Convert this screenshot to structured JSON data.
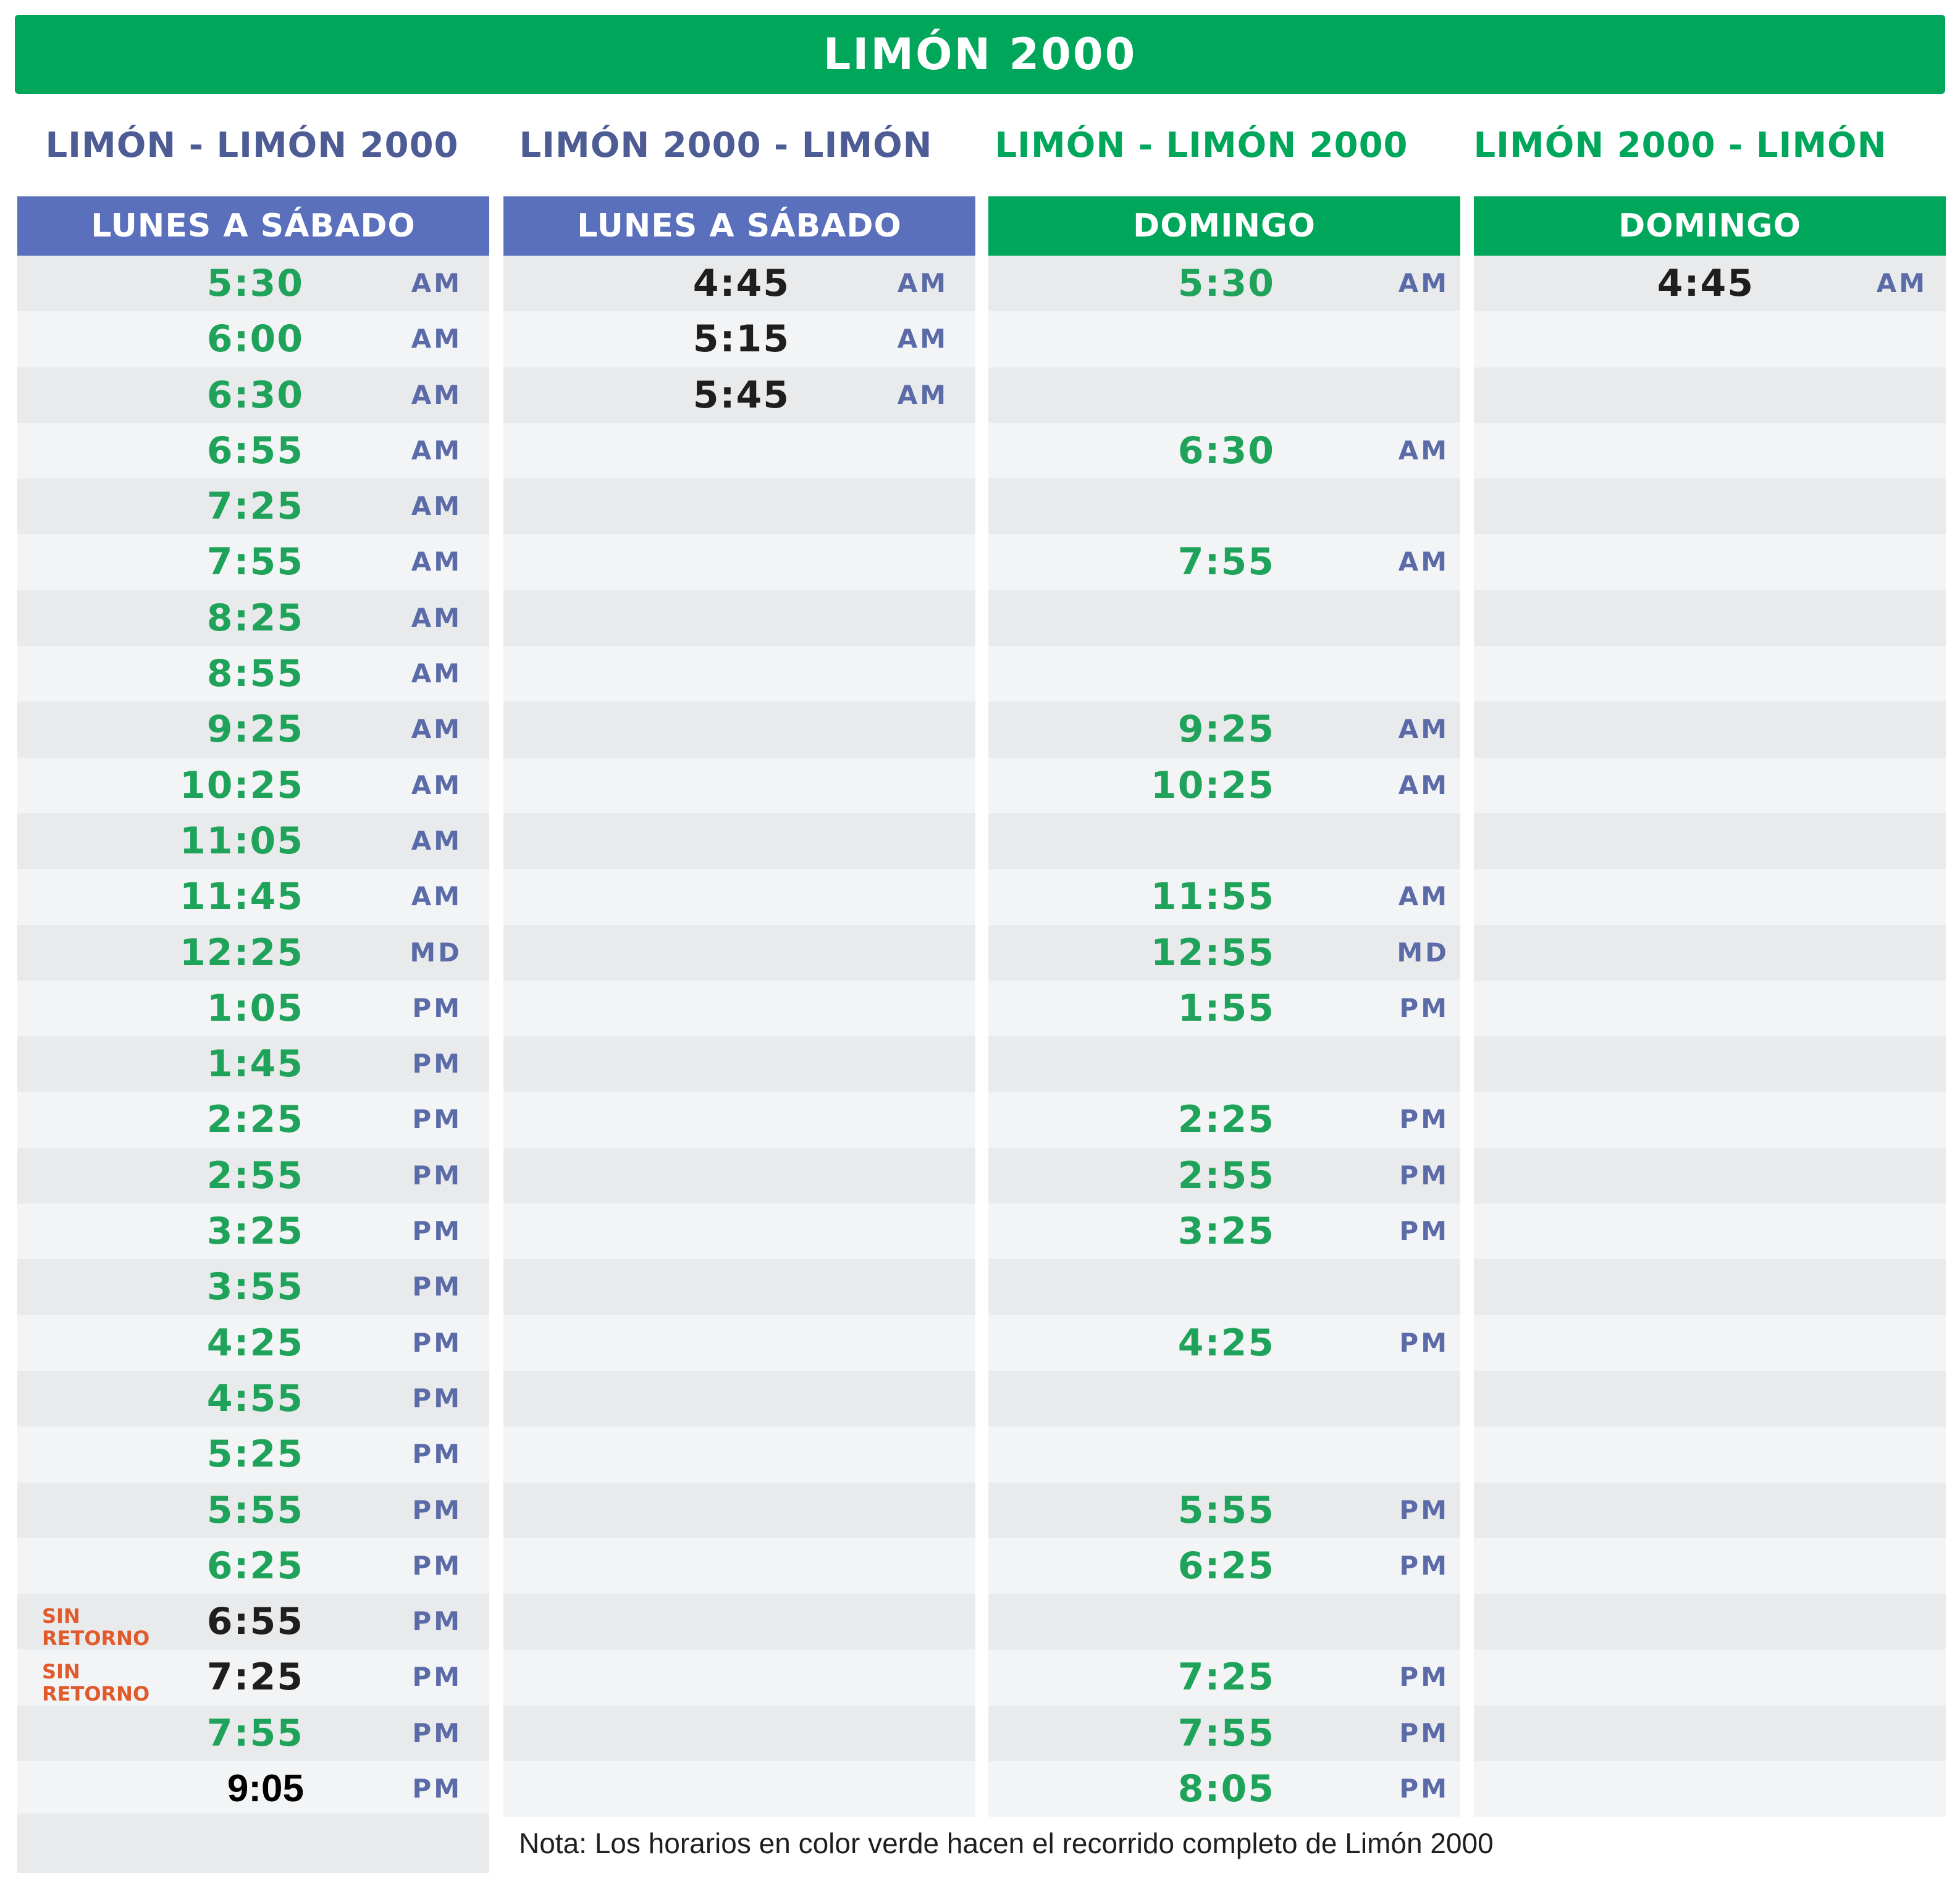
{
  "title": "LIMÓN 2000",
  "columns": [
    {
      "route": "LIMÓN - LIMÓN 2000",
      "day": "LUNES A SÁBADO",
      "rows": [
        {
          "time": "5:30",
          "period": "AM",
          "style": "g"
        },
        {
          "time": "6:00",
          "period": "AM",
          "style": "g"
        },
        {
          "time": "6:30",
          "period": "AM",
          "style": "g"
        },
        {
          "time": "6:55",
          "period": "AM",
          "style": "g"
        },
        {
          "time": "7:25",
          "period": "AM",
          "style": "g"
        },
        {
          "time": "7:55",
          "period": "AM",
          "style": "g"
        },
        {
          "time": "8:25",
          "period": "AM",
          "style": "g"
        },
        {
          "time": "8:55",
          "period": "AM",
          "style": "g"
        },
        {
          "time": "9:25",
          "period": "AM",
          "style": "g"
        },
        {
          "time": "10:25",
          "period": "AM",
          "style": "g"
        },
        {
          "time": "11:05",
          "period": "AM",
          "style": "g"
        },
        {
          "time": "11:45",
          "period": "AM",
          "style": "g"
        },
        {
          "time": "12:25",
          "period": "MD",
          "style": "g"
        },
        {
          "time": "1:05",
          "period": "PM",
          "style": "g"
        },
        {
          "time": "1:45",
          "period": "PM",
          "style": "g"
        },
        {
          "time": "2:25",
          "period": "PM",
          "style": "g"
        },
        {
          "time": "2:55",
          "period": "PM",
          "style": "g"
        },
        {
          "time": "3:25",
          "period": "PM",
          "style": "g"
        },
        {
          "time": "3:55",
          "period": "PM",
          "style": "g"
        },
        {
          "time": "4:25",
          "period": "PM",
          "style": "g"
        },
        {
          "time": "4:55",
          "period": "PM",
          "style": "g"
        },
        {
          "time": "5:25",
          "period": "PM",
          "style": "g"
        },
        {
          "time": "5:55",
          "period": "PM",
          "style": "g"
        },
        {
          "time": "6:25",
          "period": "PM",
          "style": "g"
        },
        {
          "time": "6:55",
          "period": "PM",
          "style": "k",
          "tag": "SIN RETORNO"
        },
        {
          "time": "7:25",
          "period": "PM",
          "style": "k",
          "tag": "SIN RETORNO"
        },
        {
          "time": "7:55",
          "period": "PM",
          "style": "g"
        },
        {
          "time": "9:05",
          "period": "PM",
          "style": "bk"
        }
      ]
    },
    {
      "route": "LIMÓN 2000 - LIMÓN",
      "day": "LUNES A SÁBADO",
      "rows": [
        {
          "time": "4:45",
          "period": "AM",
          "style": "k"
        },
        {
          "time": "5:15",
          "period": "AM",
          "style": "k"
        },
        {
          "time": "5:45",
          "period": "AM",
          "style": "k"
        },
        {},
        {},
        {},
        {},
        {},
        {},
        {},
        {},
        {},
        {},
        {},
        {},
        {},
        {},
        {},
        {},
        {},
        {},
        {},
        {},
        {},
        {},
        {},
        {},
        {}
      ]
    },
    {
      "route": "LIMÓN - LIMÓN 2000",
      "day": "DOMINGO",
      "rows": [
        {
          "time": "5:30",
          "period": "AM",
          "style": "g"
        },
        {},
        {},
        {
          "time": "6:30",
          "period": "AM",
          "style": "g"
        },
        {},
        {
          "time": "7:55",
          "period": "AM",
          "style": "g"
        },
        {},
        {},
        {
          "time": "9:25",
          "period": "AM",
          "style": "g"
        },
        {
          "time": "10:25",
          "period": "AM",
          "style": "g"
        },
        {},
        {
          "time": "11:55",
          "period": "AM",
          "style": "g"
        },
        {
          "time": "12:55",
          "period": "MD",
          "style": "g"
        },
        {
          "time": "1:55",
          "period": "PM",
          "style": "g"
        },
        {},
        {
          "time": "2:25",
          "period": "PM",
          "style": "g"
        },
        {
          "time": "2:55",
          "period": "PM",
          "style": "g"
        },
        {
          "time": "3:25",
          "period": "PM",
          "style": "g"
        },
        {},
        {
          "time": "4:25",
          "period": "PM",
          "style": "g"
        },
        {},
        {},
        {
          "time": "5:55",
          "period": "PM",
          "style": "g"
        },
        {
          "time": "6:25",
          "period": "PM",
          "style": "g"
        },
        {},
        {
          "time": "7:25",
          "period": "PM",
          "style": "g"
        },
        {
          "time": "7:55",
          "period": "PM",
          "style": "g"
        },
        {
          "time": "8:05",
          "period": "PM",
          "style": "g"
        }
      ]
    },
    {
      "route": "LIMÓN 2000 - LIMÓN",
      "day": "DOMINGO",
      "rows": [
        {
          "time": "4:45",
          "period": "AM",
          "style": "k"
        },
        {},
        {},
        {},
        {},
        {},
        {},
        {},
        {},
        {},
        {},
        {},
        {},
        {},
        {},
        {},
        {},
        {},
        {},
        {},
        {},
        {},
        {},
        {},
        {},
        {},
        {},
        {}
      ]
    }
  ],
  "note": "Nota: Los horarios en color verde hacen el recorrido completo de Limón 2000"
}
